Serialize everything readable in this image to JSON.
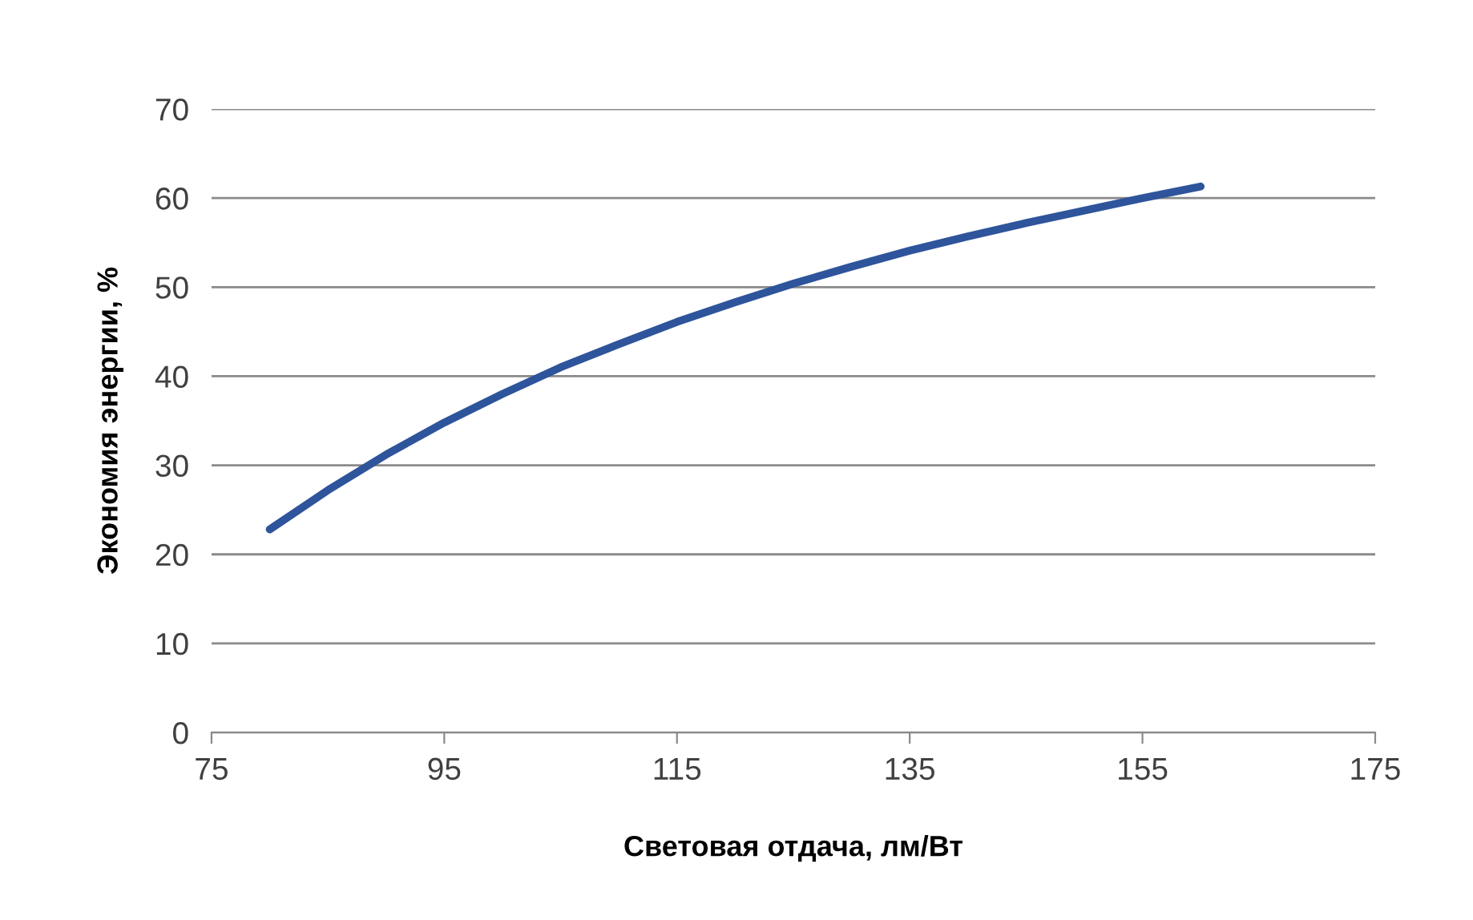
{
  "chart_data": {
    "type": "line",
    "xlabel": "Световая отдача, лм/Вт",
    "ylabel": "Экономия энергии, %",
    "x": [
      80,
      85,
      90,
      95,
      100,
      105,
      110,
      115,
      120,
      125,
      130,
      135,
      140,
      145,
      150,
      155,
      160
    ],
    "series": [
      {
        "color": "#2e549b",
        "values": [
          22.8,
          27.2,
          31.2,
          34.8,
          38.0,
          41.0,
          43.6,
          46.1,
          48.3,
          50.4,
          52.3,
          54.1,
          55.7,
          57.2,
          58.6,
          60.0,
          61.3
        ]
      }
    ],
    "xlim": [
      75,
      175
    ],
    "xticks": [
      75,
      95,
      115,
      135,
      155,
      175
    ],
    "ylim": [
      0,
      70
    ],
    "yticks": [
      0,
      10,
      20,
      30,
      40,
      50,
      60,
      70
    ],
    "grid": "y",
    "marker": "none",
    "line_style": "solid"
  }
}
